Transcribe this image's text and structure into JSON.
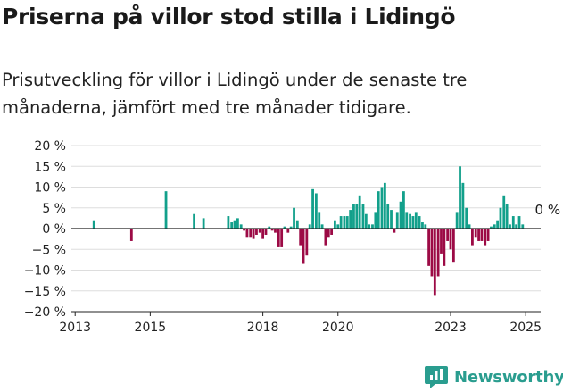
{
  "title": "Priserna på villor stod stilla i Lidingö",
  "subtitle": "Prisutveckling för villor i Lidingö under de senaste tre månaderna, jämfört med tre månader tidigare.",
  "brand": {
    "name": "Newsworthy",
    "icon": "newsworthy-chart-icon",
    "color": "#2a9d8f"
  },
  "chart_data": {
    "type": "bar",
    "title": "Priserna på villor stod stilla i Lidingö",
    "subtitle": "Prisutveckling för villor i Lidingö under de senaste tre månaderna, jämfört med tre månader tidigare.",
    "xlabel": "",
    "ylabel": "",
    "ylim": [
      -20,
      20
    ],
    "yticks": [
      -20,
      -15,
      -10,
      -5,
      0,
      5,
      10,
      15,
      20
    ],
    "ytick_labels": [
      "−20 %",
      "−15 %",
      "−10 %",
      "−5 %",
      "0 %",
      "5 %",
      "10 %",
      "15 %",
      "20 %"
    ],
    "xlim": [
      2012.9,
      2025.4
    ],
    "xticks": [
      2013,
      2015,
      2018,
      2020,
      2023,
      2025
    ],
    "xtick_labels": [
      "2013",
      "2015",
      "2018",
      "2020",
      "2023",
      "2025"
    ],
    "grid": true,
    "colors": {
      "positive": "#12a08b",
      "negative": "#9c0a45",
      "axis": "#222222",
      "grid": "#dddddd"
    },
    "annotation": {
      "text": "0 %",
      "x": 2025.08,
      "y": 0
    },
    "x": [
      2013.5,
      2014.5,
      2015.42,
      2016.17,
      2016.42,
      2017.08,
      2017.17,
      2017.25,
      2017.33,
      2017.42,
      2017.5,
      2017.58,
      2017.67,
      2017.75,
      2017.83,
      2017.92,
      2018.0,
      2018.08,
      2018.17,
      2018.25,
      2018.33,
      2018.42,
      2018.5,
      2018.58,
      2018.67,
      2018.75,
      2018.83,
      2018.92,
      2019.0,
      2019.08,
      2019.17,
      2019.25,
      2019.33,
      2019.42,
      2019.5,
      2019.58,
      2019.67,
      2019.75,
      2019.83,
      2019.92,
      2020.0,
      2020.08,
      2020.17,
      2020.25,
      2020.33,
      2020.42,
      2020.5,
      2020.58,
      2020.67,
      2020.75,
      2020.83,
      2020.92,
      2021.0,
      2021.08,
      2021.17,
      2021.25,
      2021.33,
      2021.42,
      2021.5,
      2021.58,
      2021.67,
      2021.75,
      2021.83,
      2021.92,
      2022.0,
      2022.08,
      2022.17,
      2022.25,
      2022.33,
      2022.42,
      2022.5,
      2022.58,
      2022.67,
      2022.75,
      2022.83,
      2022.92,
      2023.0,
      2023.08,
      2023.17,
      2023.25,
      2023.33,
      2023.42,
      2023.5,
      2023.58,
      2023.67,
      2023.75,
      2023.83,
      2023.92,
      2024.0,
      2024.08,
      2024.17,
      2024.25,
      2024.33,
      2024.42,
      2024.5,
      2024.58,
      2024.67,
      2024.75,
      2024.83,
      2024.92
    ],
    "values": [
      2,
      -3,
      9,
      3.5,
      2.5,
      3,
      1.5,
      2,
      2.5,
      1,
      -0.5,
      -2,
      -2,
      -2.5,
      -1.5,
      -1,
      -2.5,
      -1.5,
      0.5,
      -0.5,
      -1,
      -4.5,
      -4.5,
      0.5,
      -1,
      0.5,
      5,
      2,
      -4,
      -8.5,
      -6.5,
      1,
      9.5,
      8.5,
      4,
      1,
      -4,
      -2,
      -1.5,
      2,
      1,
      3,
      3,
      3,
      4.5,
      6,
      6,
      8,
      6,
      3.5,
      1,
      1,
      4,
      9,
      10,
      11,
      6,
      4.5,
      -1,
      4,
      6.5,
      9,
      4,
      3.5,
      3,
      4,
      3,
      1.5,
      1,
      -9,
      -11.5,
      -16,
      -11.5,
      -6,
      -9,
      -3,
      -5,
      -8,
      4,
      15,
      11,
      5,
      1,
      -4,
      -2,
      -3,
      -3,
      -4,
      -3,
      0.5,
      1,
      2,
      5,
      8,
      6,
      1,
      3,
      1,
      3,
      1
    ]
  }
}
